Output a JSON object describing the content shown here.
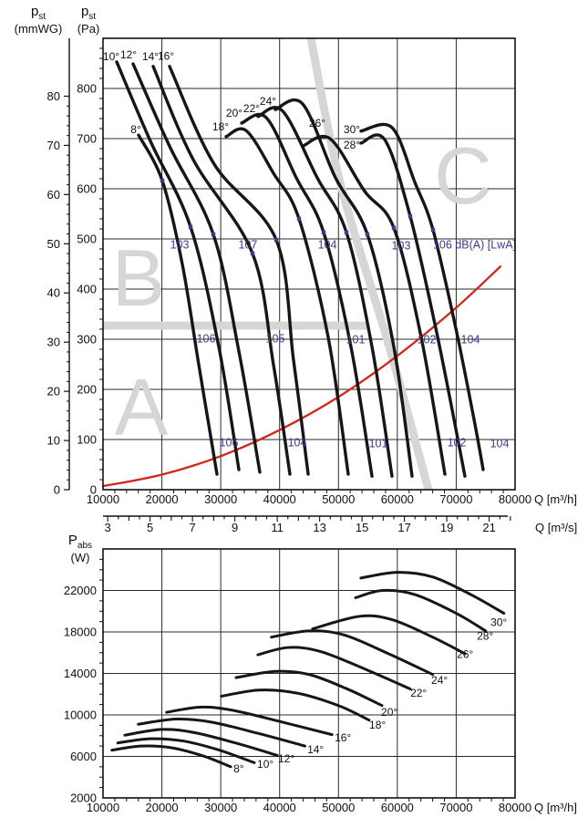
{
  "colors": {
    "curve": "#161616",
    "grid": "#2b2b2b",
    "frame": "#111111",
    "system_curve": "#d1261b",
    "noise": "#3b3b8f",
    "zone": "#d6d6d6",
    "text": "#111111"
  },
  "titles": {
    "pst_sym": "p",
    "pst_sub": "st",
    "unit_mmwg": "(mmWG)",
    "unit_pa": "(Pa)",
    "pabs_sym": "P",
    "pabs_sub": "abs",
    "unit_w": "(W)"
  },
  "chart_data": [
    {
      "id": "static-pressure-vs-flow",
      "type": "line",
      "xlabel": "Q [m³/h]",
      "xlabel_secondary": "Q [m³/s]",
      "ylabel_primary_pa": "pst (Pa)",
      "ylabel_secondary_mmwg": "pst (mmWG)",
      "x_range": [
        10000,
        80000
      ],
      "y_range_pa": [
        0,
        900
      ],
      "x_ticks": [
        10000,
        20000,
        30000,
        40000,
        50000,
        60000,
        70000,
        80000
      ],
      "x_minor_step": 2000,
      "y_ticks_pa": [
        0,
        100,
        200,
        300,
        400,
        500,
        600,
        700,
        800
      ],
      "y_minor_step_pa": 20,
      "y_ticks_mmwg": [
        0,
        10,
        20,
        30,
        40,
        50,
        60,
        70,
        80
      ],
      "mmwg_to_pa": 9.807,
      "x2_ticks": [
        3,
        5,
        7,
        9,
        11,
        13,
        15,
        17,
        19,
        21
      ],
      "x2_minor_step": 0.5,
      "x2_unit_to_m3h": 3600,
      "grid": true,
      "series": [
        {
          "name": "8°",
          "points": [
            [
              16040,
              707
            ],
            [
              20070,
              616
            ],
            [
              23480,
              449
            ],
            [
              26270,
              249
            ],
            [
              29360,
              31
            ]
          ]
        },
        {
          "name": "10°",
          "points": [
            [
              12320,
              853
            ],
            [
              18050,
              695
            ],
            [
              24870,
              524
            ],
            [
              29670,
              285
            ],
            [
              33080,
              40
            ]
          ]
        },
        {
          "name": "12°",
          "points": [
            [
              15110,
              849
            ],
            [
              21300,
              685
            ],
            [
              28740,
              509
            ],
            [
              33080,
              276
            ],
            [
              36640,
              35
            ]
          ]
        },
        {
          "name": "14°",
          "points": [
            [
              18520,
              844
            ],
            [
              25330,
              658
            ],
            [
              35400,
              471
            ],
            [
              38960,
              249
            ],
            [
              41750,
              31
            ]
          ]
        },
        {
          "name": "16°",
          "points": [
            [
              21300,
              844
            ],
            [
              28890,
              649
            ],
            [
              39430,
              498
            ],
            [
              42370,
              258
            ],
            [
              44850,
              31
            ]
          ]
        },
        {
          "name": "18°",
          "points": [
            [
              30910,
              704
            ],
            [
              34310,
              716
            ],
            [
              38960,
              631
            ],
            [
              43300,
              540
            ],
            [
              48250,
              304
            ],
            [
              51660,
              31
            ]
          ]
        },
        {
          "name": "20°",
          "points": [
            [
              33540,
              731
            ],
            [
              37720,
              742
            ],
            [
              42830,
              622
            ],
            [
              47480,
              513
            ],
            [
              52120,
              285
            ],
            [
              55690,
              27
            ]
          ]
        },
        {
          "name": "22°",
          "points": [
            [
              36330,
              744
            ],
            [
              40510,
              755
            ],
            [
              46390,
              622
            ],
            [
              51350,
              513
            ],
            [
              55690,
              285
            ],
            [
              59090,
              27
            ]
          ]
        },
        {
          "name": "24°",
          "points": [
            [
              39270,
              758
            ],
            [
              43920,
              769
            ],
            [
              49490,
              622
            ],
            [
              54910,
              509
            ],
            [
              59400,
              285
            ],
            [
              62500,
              27
            ]
          ]
        },
        {
          "name": "26°",
          "points": [
            [
              43920,
              685
            ],
            [
              48560,
              700
            ],
            [
              54450,
              595
            ],
            [
              59400,
              522
            ],
            [
              64050,
              304
            ],
            [
              68080,
              31
            ]
          ]
        },
        {
          "name": "28°",
          "points": [
            [
              53830,
              691
            ],
            [
              57850,
              698
            ],
            [
              62190,
              545
            ],
            [
              66530,
              322
            ],
            [
              69930,
              122
            ],
            [
              71480,
              27
            ]
          ]
        },
        {
          "name": "30°",
          "points": [
            [
              53830,
              715
            ],
            [
              59090,
              722
            ],
            [
              62970,
              613
            ],
            [
              66060,
              518
            ],
            [
              69930,
              322
            ],
            [
              73030,
              140
            ],
            [
              74580,
              40
            ]
          ]
        }
      ],
      "system_curve": {
        "points": [
          [
            10000,
            7
          ],
          [
            20000,
            30
          ],
          [
            30000,
            67
          ],
          [
            40000,
            119
          ],
          [
            50000,
            185
          ],
          [
            60000,
            267
          ],
          [
            70000,
            363
          ],
          [
            77500,
            445
          ]
        ]
      },
      "noise_points": [
        [
          20070,
          616
        ],
        [
          24870,
          524
        ],
        [
          28740,
          509
        ],
        [
          35400,
          471
        ],
        [
          39430,
          498
        ],
        [
          43300,
          540
        ],
        [
          47480,
          513
        ],
        [
          51350,
          513
        ],
        [
          54910,
          509
        ],
        [
          59400,
          522
        ],
        [
          62190,
          545
        ],
        [
          66060,
          518
        ]
      ],
      "noise_labels": [
        {
          "text": "103",
          "q": 23010,
          "pa": 489
        },
        {
          "text": "107",
          "q": 34620,
          "pa": 489
        },
        {
          "text": "104",
          "q": 48100,
          "pa": 489
        },
        {
          "text": "103",
          "q": 60640,
          "pa": 487
        },
        {
          "text": "106 dB(A) [LwA]",
          "q": 66060,
          "pa": 489,
          "anchor": "start"
        },
        {
          "text": "106",
          "q": 27500,
          "pa": 302
        },
        {
          "text": "105",
          "q": 39270,
          "pa": 302
        },
        {
          "text": "101",
          "q": 52900,
          "pa": 300
        },
        {
          "text": "102",
          "q": 64980,
          "pa": 300
        },
        {
          "text": "104",
          "q": 72410,
          "pa": 300
        },
        {
          "text": "106",
          "q": 31370,
          "pa": 95
        },
        {
          "text": "104",
          "q": 42990,
          "pa": 95
        },
        {
          "text": "101",
          "q": 56770,
          "pa": 93
        },
        {
          "text": "102",
          "q": 70090,
          "pa": 95
        },
        {
          "text": "104",
          "q": 77370,
          "pa": 93
        }
      ],
      "angle_labels": [
        {
          "text": "8°",
          "q": 15580,
          "pa": 718
        },
        {
          "text": "10°",
          "q": 11390,
          "pa": 864
        },
        {
          "text": "12°",
          "q": 14340,
          "pa": 867
        },
        {
          "text": "14°",
          "q": 18050,
          "pa": 864
        },
        {
          "text": "16°",
          "q": 20690,
          "pa": 865
        },
        {
          "text": "18°",
          "q": 29980,
          "pa": 724
        },
        {
          "text": "20°",
          "q": 32300,
          "pa": 751
        },
        {
          "text": "22°",
          "q": 35240,
          "pa": 760
        },
        {
          "text": "24°",
          "q": 38030,
          "pa": 775
        },
        {
          "text": "26°",
          "q": 46390,
          "pa": 731
        },
        {
          "text": "28°",
          "q": 52280,
          "pa": 687
        },
        {
          "text": "30°",
          "q": 52280,
          "pa": 718
        }
      ],
      "zones": {
        "letters": [
          {
            "text": "A",
            "q": 16510,
            "pa": 109
          },
          {
            "text": "B",
            "q": 16040,
            "pa": 367
          },
          {
            "text": "C",
            "q": 71170,
            "pa": 571
          }
        ],
        "h_band": [
          [
            10000,
            327
          ],
          [
            54910,
            327
          ]
        ],
        "d_band": [
          [
            45310,
            900
          ],
          [
            50270,
            613
          ],
          [
            58630,
            285
          ],
          [
            65290,
            0
          ]
        ]
      }
    },
    {
      "id": "absorbed-power-vs-flow",
      "type": "line",
      "xlabel": "Q [m³/h]",
      "ylabel": "Pabs (W)",
      "x_range": [
        10000,
        80000
      ],
      "y_range": [
        2000,
        26000
      ],
      "x_ticks": [
        10000,
        20000,
        30000,
        40000,
        50000,
        60000,
        70000,
        80000
      ],
      "x_minor_step": 2000,
      "y_ticks": [
        2000,
        6000,
        10000,
        14000,
        18000,
        22000
      ],
      "y_minor_step": 1000,
      "grid": true,
      "series": [
        {
          "name": "8°",
          "points": [
            [
              11500,
              6600
            ],
            [
              16500,
              7000
            ],
            [
              21500,
              6850
            ],
            [
              27000,
              6050
            ],
            [
              31700,
              5000
            ]
          ]
        },
        {
          "name": "10°",
          "points": [
            [
              12500,
              7300
            ],
            [
              18000,
              7700
            ],
            [
              23500,
              7500
            ],
            [
              29500,
              6650
            ],
            [
              35700,
              5400
            ]
          ]
        },
        {
          "name": "12°",
          "points": [
            [
              13700,
              8050
            ],
            [
              20000,
              8600
            ],
            [
              25500,
              8300
            ],
            [
              32500,
              7300
            ],
            [
              39600,
              6100
            ]
          ]
        },
        {
          "name": "14°",
          "points": [
            [
              16000,
              9100
            ],
            [
              22500,
              9600
            ],
            [
              28500,
              9300
            ],
            [
              36500,
              8200
            ],
            [
              44300,
              7000
            ]
          ]
        },
        {
          "name": "16°",
          "points": [
            [
              20800,
              10250
            ],
            [
              26500,
              10750
            ],
            [
              32000,
              10450
            ],
            [
              40500,
              9300
            ],
            [
              48900,
              8100
            ]
          ]
        },
        {
          "name": "18°",
          "points": [
            [
              30100,
              11800
            ],
            [
              36500,
              12400
            ],
            [
              43000,
              12100
            ],
            [
              50000,
              10900
            ],
            [
              55200,
              9500
            ]
          ]
        },
        {
          "name": "20°",
          "points": [
            [
              32600,
              13600
            ],
            [
              39300,
              14200
            ],
            [
              45000,
              13900
            ],
            [
              51500,
              12500
            ],
            [
              57400,
              10900
            ]
          ]
        },
        {
          "name": "22°",
          "points": [
            [
              36300,
              15800
            ],
            [
              41500,
              16500
            ],
            [
              47000,
              16100
            ],
            [
              55000,
              14300
            ],
            [
              62200,
              12500
            ]
          ]
        },
        {
          "name": "24°",
          "points": [
            [
              38600,
              17500
            ],
            [
              45000,
              18100
            ],
            [
              51000,
              17700
            ],
            [
              58500,
              15900
            ],
            [
              66000,
              13900
            ]
          ]
        },
        {
          "name": "26°",
          "points": [
            [
              45600,
              18300
            ],
            [
              53500,
              19500
            ],
            [
              59000,
              19200
            ],
            [
              66000,
              17500
            ],
            [
              71500,
              15900
            ]
          ]
        },
        {
          "name": "28°",
          "points": [
            [
              52900,
              21300
            ],
            [
              57500,
              22000
            ],
            [
              63000,
              21600
            ],
            [
              70000,
              19800
            ],
            [
              75000,
              18100
            ]
          ]
        },
        {
          "name": "30°",
          "points": [
            [
              53800,
              23200
            ],
            [
              60000,
              23750
            ],
            [
              66000,
              23300
            ],
            [
              72500,
              21600
            ],
            [
              78100,
              19800
            ]
          ]
        }
      ],
      "angle_labels": [
        {
          "text": "8°",
          "q": 32160,
          "p": 4810
        },
        {
          "text": "10°",
          "q": 36180,
          "p": 5250
        },
        {
          "text": "12°",
          "q": 39740,
          "p": 5770
        },
        {
          "text": "14°",
          "q": 44700,
          "p": 6650
        },
        {
          "text": "16°",
          "q": 49350,
          "p": 7790
        },
        {
          "text": "18°",
          "q": 55230,
          "p": 9020
        },
        {
          "text": "20°",
          "q": 57240,
          "p": 10250
        },
        {
          "text": "22°",
          "q": 62200,
          "p": 12090
        },
        {
          "text": "24°",
          "q": 65760,
          "p": 13320
        },
        {
          "text": "26°",
          "q": 70100,
          "p": 15860
        },
        {
          "text": "28°",
          "q": 73510,
          "p": 17610
        },
        {
          "text": "30°",
          "q": 75830,
          "p": 18930
        }
      ]
    }
  ]
}
